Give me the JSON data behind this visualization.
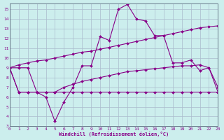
{
  "xlabel": "Windchill (Refroidissement éolien,°C)",
  "bg_color": "#cceeed",
  "grid_color": "#aabbcc",
  "line_color": "#880088",
  "xlim": [
    0,
    23
  ],
  "ylim": [
    3,
    15.6
  ],
  "xticks": [
    0,
    1,
    2,
    3,
    4,
    5,
    6,
    7,
    8,
    9,
    10,
    11,
    12,
    13,
    14,
    15,
    16,
    17,
    18,
    19,
    20,
    21,
    22,
    23
  ],
  "yticks": [
    3,
    4,
    5,
    6,
    7,
    8,
    9,
    10,
    11,
    12,
    13,
    14,
    15
  ],
  "line1_x": [
    0,
    1,
    2,
    3,
    4,
    5,
    6,
    7,
    8,
    9,
    10,
    11,
    12,
    13,
    14,
    15,
    16,
    17,
    18,
    19,
    20,
    21,
    22,
    23
  ],
  "line1_y": [
    9.0,
    9.3,
    9.5,
    9.7,
    9.8,
    10.0,
    10.2,
    10.4,
    10.6,
    10.7,
    10.9,
    11.1,
    11.3,
    11.5,
    11.7,
    11.9,
    12.1,
    12.3,
    12.5,
    12.7,
    12.9,
    13.1,
    13.2,
    13.3
  ],
  "line2_x": [
    0,
    1,
    2,
    3,
    4,
    5,
    6,
    7,
    8,
    9,
    10,
    11,
    12,
    13,
    14,
    15,
    16,
    17,
    18,
    19,
    20,
    21,
    22,
    23
  ],
  "line2_y": [
    9.0,
    9.0,
    9.0,
    6.5,
    6.0,
    3.5,
    5.5,
    7.0,
    9.2,
    9.2,
    12.2,
    11.8,
    15.0,
    15.5,
    14.0,
    13.8,
    12.3,
    12.3,
    9.5,
    9.5,
    9.8,
    8.7,
    9.0,
    7.0
  ],
  "line3_x": [
    0,
    1,
    2,
    3,
    4,
    5,
    6,
    7,
    8,
    9,
    10,
    11,
    12,
    13,
    14,
    15,
    16,
    17,
    18,
    19,
    20,
    21,
    22,
    23
  ],
  "line3_y": [
    9.0,
    6.5,
    6.5,
    6.5,
    6.5,
    6.5,
    6.5,
    6.5,
    6.5,
    6.5,
    6.5,
    6.5,
    6.5,
    6.5,
    6.5,
    6.5,
    6.5,
    6.5,
    6.5,
    6.5,
    6.5,
    6.5,
    6.5,
    6.5
  ],
  "line4_x": [
    0,
    1,
    2,
    3,
    4,
    5,
    6,
    7,
    8,
    9,
    10,
    11,
    12,
    13,
    14,
    15,
    16,
    17,
    18,
    19,
    20,
    21,
    22,
    23
  ],
  "line4_y": [
    9.0,
    6.5,
    6.5,
    6.5,
    6.5,
    6.5,
    7.0,
    7.3,
    7.6,
    7.8,
    8.0,
    8.2,
    8.4,
    8.6,
    8.7,
    8.8,
    8.9,
    9.0,
    9.1,
    9.2,
    9.2,
    9.3,
    9.0,
    6.5
  ]
}
